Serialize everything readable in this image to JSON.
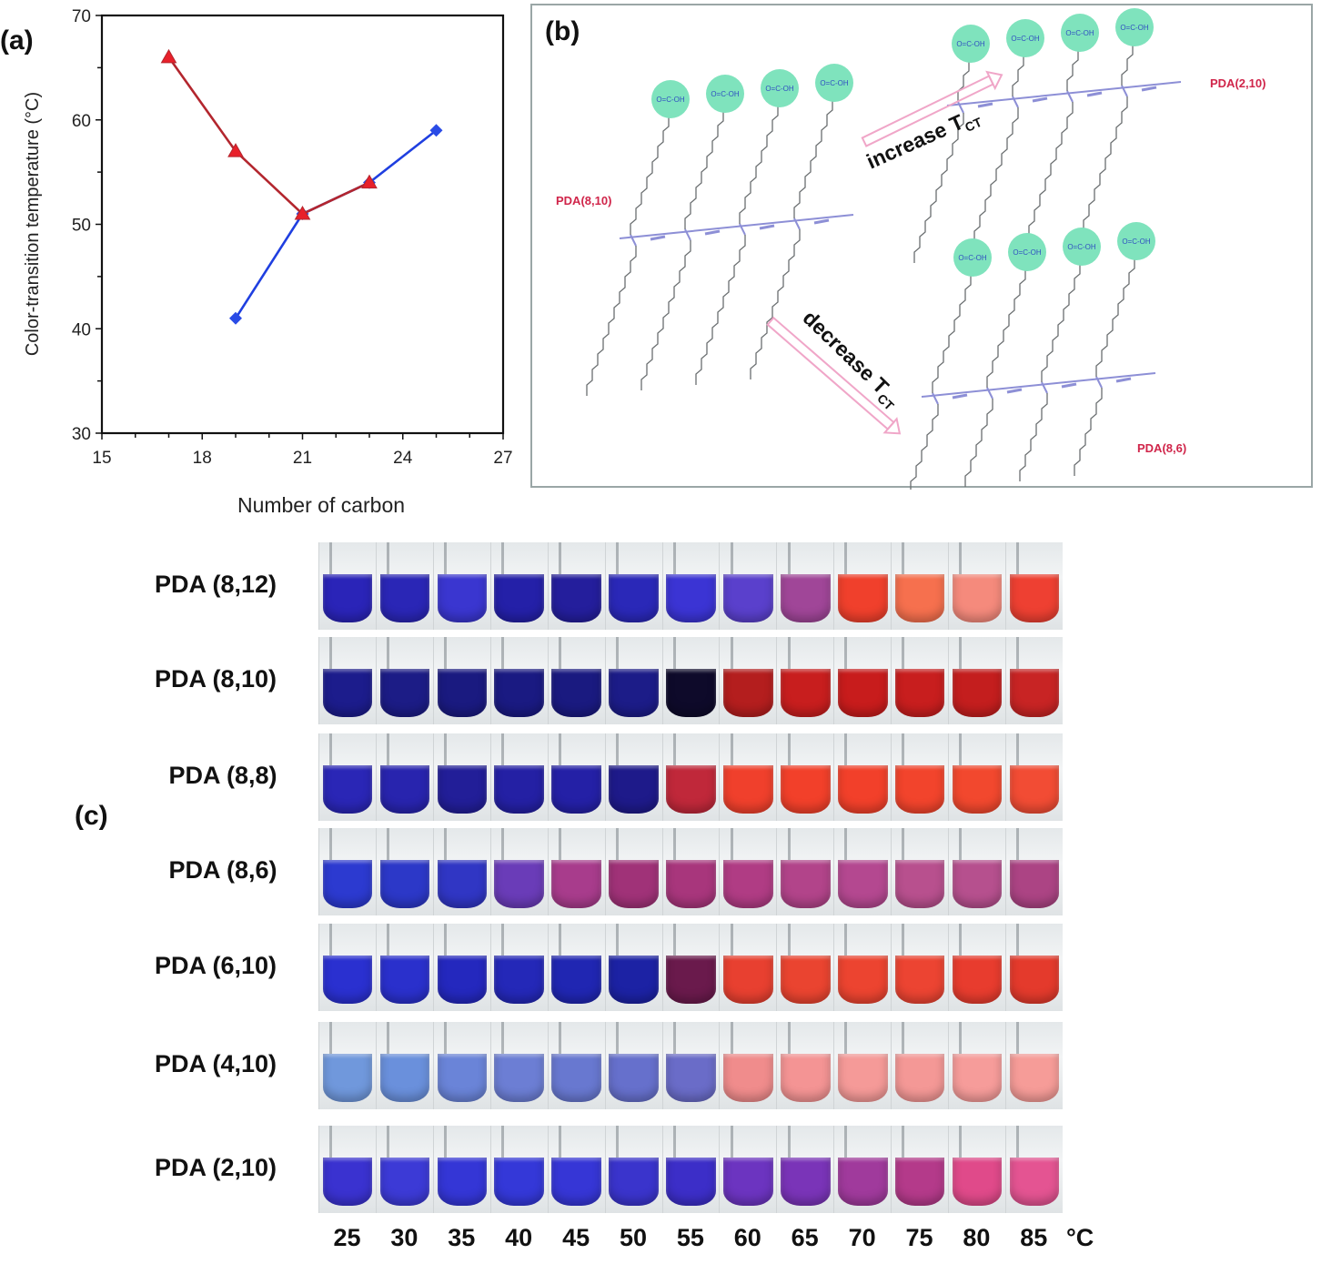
{
  "figure": {
    "panel_labels": {
      "a": "(a)",
      "b": "(b)",
      "c": "(c)"
    }
  },
  "chart_data": {
    "type": "line",
    "title": "",
    "xlabel": "Number of carbon",
    "ylabel": "Color-transition temperature (°C)",
    "xlim": [
      15,
      27
    ],
    "ylim": [
      30,
      70
    ],
    "xticks": [
      15,
      18,
      21,
      24,
      27
    ],
    "yticks": [
      30,
      40,
      50,
      60,
      70
    ],
    "x_minor_step": 1,
    "y_minor_step": 5,
    "grid": false,
    "legend": "none",
    "series": [
      {
        "name": "red-triangle-series",
        "marker": "triangle",
        "color": "#e8202a",
        "line_color": "#b3262e",
        "x": [
          17,
          19,
          21,
          23
        ],
        "y": [
          66,
          57,
          51,
          54
        ]
      },
      {
        "name": "blue-diamond-series",
        "marker": "diamond",
        "color": "#2a4be6",
        "line_color": "#1f3fe0",
        "x": [
          19,
          21,
          23,
          25
        ],
        "y": [
          41,
          51,
          54,
          59
        ]
      }
    ]
  },
  "panel_b": {
    "labels": {
      "pda_8_10": "PDA(8,10)",
      "pda_2_10": "PDA(2,10)",
      "pda_8_6": "PDA(8,6)",
      "increase": "increase T",
      "increase_sub": "CT",
      "decrease": "decrease T",
      "decrease_sub": "CT",
      "headgroup": "O=C-OH"
    },
    "colors": {
      "headgroup": "#7fe3bd",
      "label": "#d0254a",
      "arrow": "#f0a6c8",
      "backbone": "#8d8fd6",
      "chain": "#6a6e70"
    }
  },
  "panel_c": {
    "temperature_unit": "°C",
    "temperatures": [
      "25",
      "30",
      "35",
      "40",
      "45",
      "50",
      "55",
      "60",
      "65",
      "70",
      "75",
      "80",
      "85"
    ],
    "rows": [
      {
        "label": "PDA (8,12)",
        "colors": [
          "#2a24b8",
          "#2a26b6",
          "#3a36d0",
          "#2420a8",
          "#241e9c",
          "#2a28b8",
          "#3b34d4",
          "#5a40cc",
          "#a04698",
          "#f0402c",
          "#f6704e",
          "#f58a7c",
          "#ee4032"
        ]
      },
      {
        "label": "PDA (8,10)",
        "colors": [
          "#1c1c8c",
          "#1c1c86",
          "#1a1a80",
          "#1a1a82",
          "#1a1a80",
          "#1c1c88",
          "#0e0a2a",
          "#b41e1e",
          "#c81e1e",
          "#c81c1c",
          "#c81e1e",
          "#c41e1e",
          "#c82424"
        ]
      },
      {
        "label": "PDA (8,8)",
        "colors": [
          "#2a26b6",
          "#2824ae",
          "#221e98",
          "#2420a4",
          "#2420a6",
          "#1e1a8a",
          "#c0283a",
          "#f0402c",
          "#f2402a",
          "#f2402a",
          "#f2442c",
          "#f2482e",
          "#f24c34"
        ]
      },
      {
        "label": "PDA (8,6)",
        "colors": [
          "#2c3ad0",
          "#2c38c8",
          "#3036c4",
          "#6a3cb8",
          "#a83c8c",
          "#a03278",
          "#a8367c",
          "#b03c84",
          "#b2448a",
          "#b44890",
          "#b8508e",
          "#b6508e",
          "#ac4484"
        ]
      },
      {
        "label": "PDA (6,10)",
        "colors": [
          "#2a30d0",
          "#2a30cc",
          "#2428be",
          "#2428b8",
          "#2026b2",
          "#1c22a4",
          "#6a1a4c",
          "#e84030",
          "#ea4430",
          "#ec4430",
          "#ec4432",
          "#e83c2e",
          "#e43a2c"
        ]
      },
      {
        "label": "PDA (4,10)",
        "colors": [
          "#7098dc",
          "#6a90dc",
          "#6a84d8",
          "#6c7ed4",
          "#6878d0",
          "#6670cc",
          "#6a6cc8",
          "#f08c8c",
          "#f49494",
          "#f59a98",
          "#f49896",
          "#f69c9a",
          "#f69c98"
        ]
      },
      {
        "label": "PDA (2,10)",
        "colors": [
          "#3a32d0",
          "#3c3ad6",
          "#3436d6",
          "#3438d8",
          "#3636d6",
          "#3a34cc",
          "#3c2ec8",
          "#6c34c0",
          "#7a34b8",
          "#a03a9c",
          "#b43a8a",
          "#e04a8a",
          "#e45492"
        ]
      }
    ]
  }
}
